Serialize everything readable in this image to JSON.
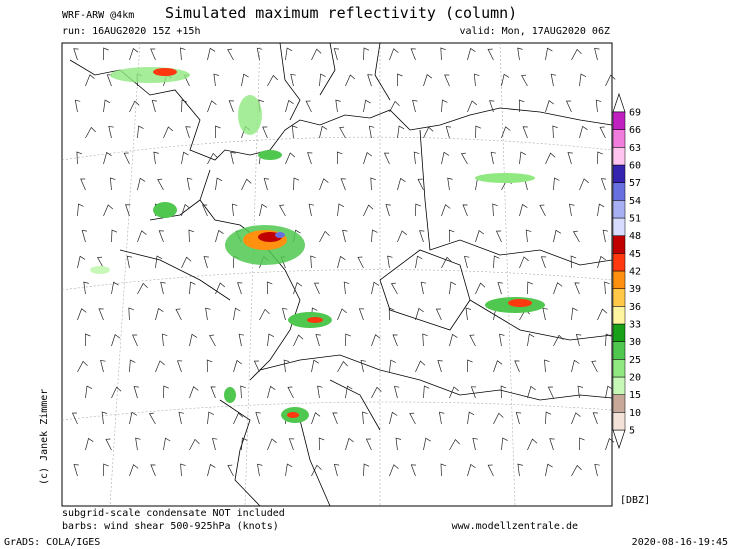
{
  "header": {
    "model": "WRF-ARW @4km",
    "title": "Simulated maximum reflectivity (column)",
    "run": "run: 16AUG2020 15Z +15h",
    "valid": "valid: Mon, 17AUG2020 06Z"
  },
  "colorbar": {
    "unit": "[DBZ]",
    "levels": [
      5,
      10,
      15,
      20,
      25,
      30,
      33,
      36,
      39,
      42,
      45,
      48,
      51,
      54,
      57,
      60,
      63,
      66,
      69
    ],
    "colors": [
      "#f2e2d8",
      "#c8a898",
      "#c8f8b8",
      "#90e880",
      "#50c850",
      "#18a018",
      "#fff4a0",
      "#ffc848",
      "#ff9010",
      "#ff3810",
      "#c00000",
      "#d8dcff",
      "#a8b0f4",
      "#6870e0",
      "#3424b0",
      "#ffc4f0",
      "#f07cdc",
      "#c020c0"
    ]
  },
  "footer": {
    "note1": "subgrid-scale condensate NOT included",
    "note2": "barbs: wind shear 500-925hPa (knots)",
    "website": "www.modellzentrale.de",
    "copyright": "(c) Janek Zimmer",
    "grads": "GrADS: COLA/IGES",
    "timestamp": "2020-08-16-19:45"
  }
}
